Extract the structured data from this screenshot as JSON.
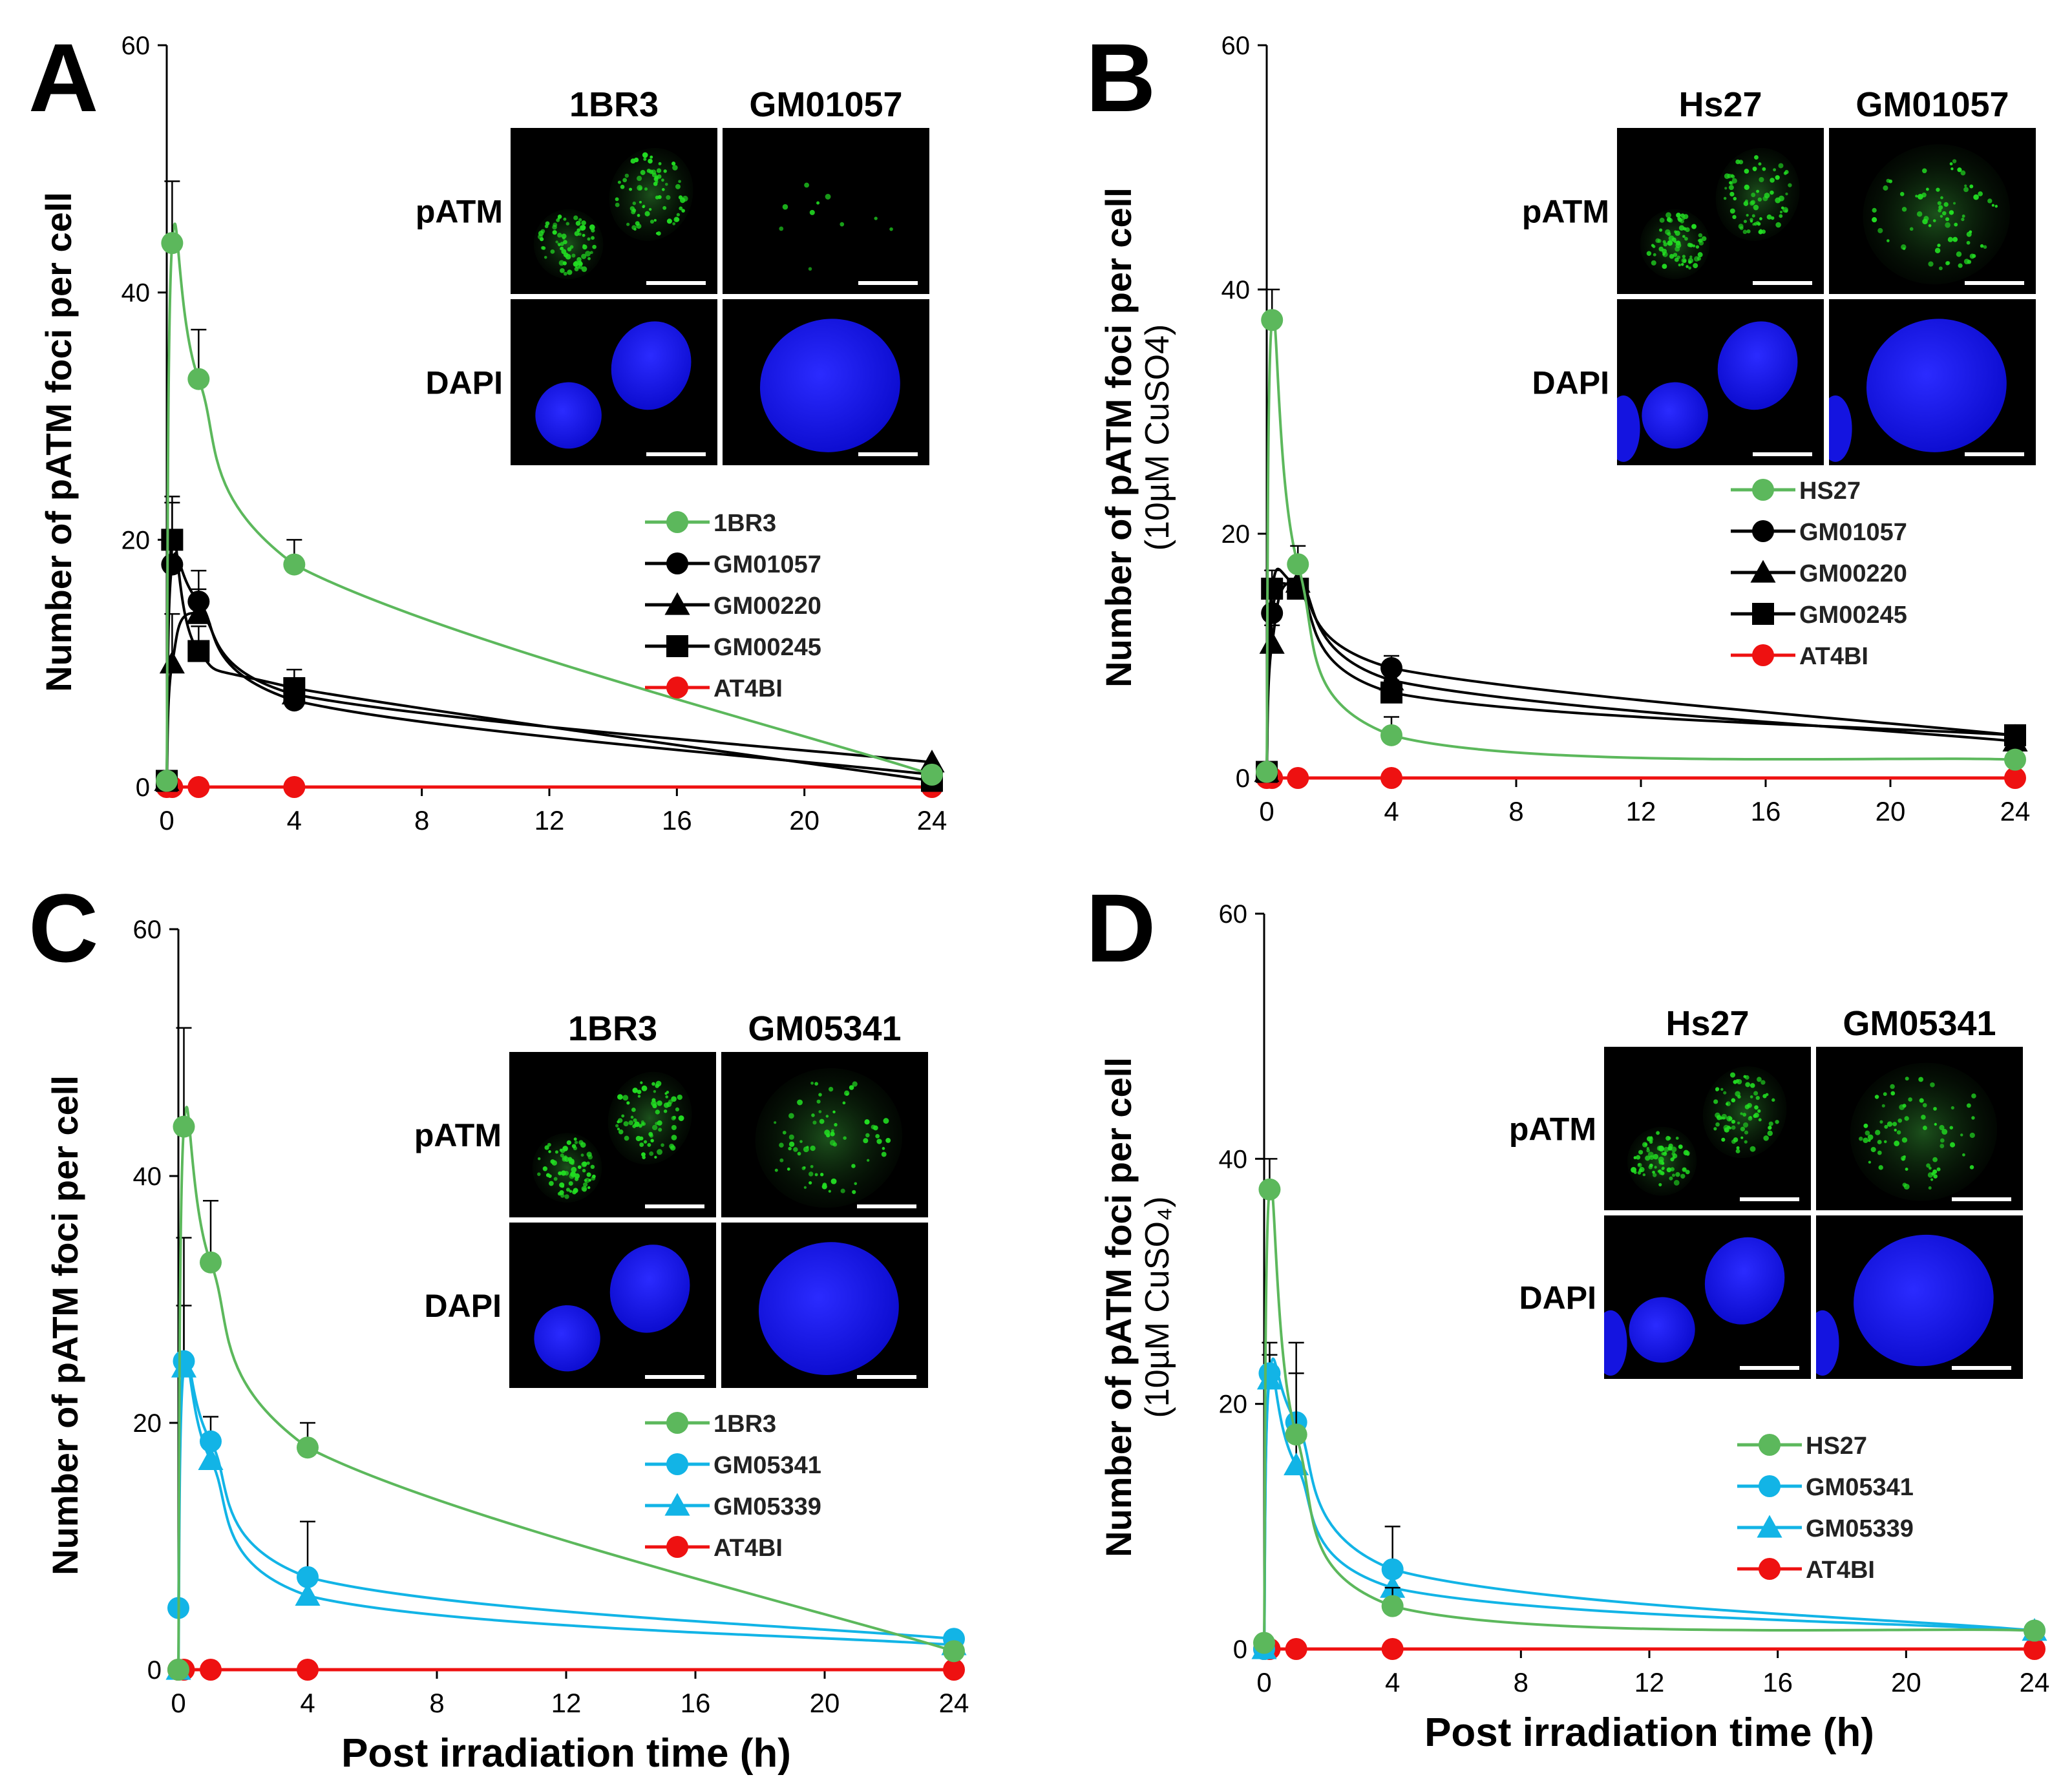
{
  "figure": {
    "xlabel": "Post irradiation time (h)",
    "colors": {
      "normal": "#5cb85c",
      "black": "#000000",
      "red": "#ee1111",
      "cyan": "#12b4e6",
      "nucleus": "#1a1aff",
      "foci": "#22dd22"
    }
  },
  "chart_data": [
    {
      "panel": "A",
      "type": "line",
      "ylabel": "Number of pATM foci per cell",
      "ylabel2": "",
      "x_ticks": [
        "0",
        "4",
        "8",
        "12",
        "16",
        "20",
        "24"
      ],
      "y_ticks": [
        "0",
        "20",
        "40",
        "60"
      ],
      "xlim": [
        0,
        24
      ],
      "ylim": [
        0,
        60
      ],
      "show_xlabel": false,
      "inset": {
        "columns": [
          "1BR3",
          "GM01057"
        ],
        "rows": [
          "pATM",
          "DAPI"
        ]
      },
      "series": [
        {
          "name": "1BR3",
          "color": "normal",
          "marker": "circle",
          "x": [
            0,
            0.17,
            1,
            4,
            24
          ],
          "y": [
            0.5,
            44,
            33,
            18,
            1
          ],
          "err": [
            0,
            5,
            4,
            2,
            0
          ]
        },
        {
          "name": "GM01057",
          "color": "black",
          "marker": "circle",
          "x": [
            0,
            0.17,
            1,
            4,
            24
          ],
          "y": [
            0.5,
            18,
            15,
            7,
            1
          ],
          "err": [
            0,
            5,
            2.5,
            1,
            0
          ]
        },
        {
          "name": "GM00220",
          "color": "black",
          "marker": "triangle",
          "x": [
            0,
            0.17,
            1,
            4,
            24
          ],
          "y": [
            0.5,
            10,
            14,
            7.5,
            2
          ],
          "err": [
            0,
            4,
            2,
            1,
            0
          ]
        },
        {
          "name": "GM00245",
          "color": "black",
          "marker": "square",
          "x": [
            0,
            0.17,
            1,
            4,
            24
          ],
          "y": [
            0.5,
            20,
            11,
            8,
            0.5
          ],
          "err": [
            0,
            3.5,
            2,
            1.5,
            0
          ]
        },
        {
          "name": "AT4BI",
          "color": "red",
          "marker": "circle",
          "x": [
            0,
            0.17,
            1,
            4,
            24
          ],
          "y": [
            0,
            0,
            0,
            0,
            0
          ],
          "err": [
            0,
            0,
            0,
            0,
            0
          ]
        }
      ]
    },
    {
      "panel": "B",
      "type": "line",
      "ylabel": "Number of pATM foci per cell",
      "ylabel2": "(10µM CuSO4)",
      "x_ticks": [
        "0",
        "4",
        "8",
        "12",
        "16",
        "20",
        "24"
      ],
      "y_ticks": [
        "0",
        "20",
        "40",
        "60"
      ],
      "xlim": [
        0,
        24
      ],
      "ylim": [
        0,
        60
      ],
      "show_xlabel": false,
      "inset": {
        "columns": [
          "Hs27",
          "GM01057"
        ],
        "rows": [
          "pATM",
          "DAPI"
        ]
      },
      "series": [
        {
          "name": "HS27",
          "color": "normal",
          "marker": "circle",
          "x": [
            0,
            0.17,
            1,
            4,
            24
          ],
          "y": [
            0.5,
            37.5,
            17.5,
            3.5,
            1.5
          ],
          "err": [
            0,
            2.5,
            1.5,
            1.5,
            0
          ]
        },
        {
          "name": "GM01057",
          "color": "black",
          "marker": "circle",
          "x": [
            0,
            0.17,
            1,
            4,
            24
          ],
          "y": [
            0.5,
            13.5,
            15.5,
            9,
            3.5
          ],
          "err": [
            0,
            2,
            1.5,
            1,
            0
          ]
        },
        {
          "name": "GM00220",
          "color": "black",
          "marker": "triangle",
          "x": [
            0,
            0.17,
            1,
            4,
            24
          ],
          "y": [
            0.5,
            11,
            16,
            8,
            3
          ],
          "err": [
            0,
            1.5,
            1.5,
            1,
            0
          ]
        },
        {
          "name": "GM00245",
          "color": "black",
          "marker": "square",
          "x": [
            0,
            0.17,
            1,
            4,
            24
          ],
          "y": [
            0.5,
            15.5,
            15.5,
            7,
            3.5
          ],
          "err": [
            0,
            1.5,
            1.5,
            1,
            0
          ]
        },
        {
          "name": "AT4BI",
          "color": "red",
          "marker": "circle",
          "x": [
            0,
            0.17,
            1,
            4,
            24
          ],
          "y": [
            0,
            0,
            0,
            0,
            0
          ],
          "err": [
            0,
            0,
            0,
            0,
            0
          ]
        }
      ]
    },
    {
      "panel": "C",
      "type": "line",
      "ylabel": "Number of pATM foci per cell",
      "ylabel2": "",
      "x_ticks": [
        "0",
        "4",
        "8",
        "12",
        "16",
        "20",
        "24"
      ],
      "y_ticks": [
        "0",
        "20",
        "40",
        "60"
      ],
      "xlim": [
        0,
        24
      ],
      "ylim": [
        0,
        60
      ],
      "show_xlabel": true,
      "inset": {
        "columns": [
          "1BR3",
          "GM05341"
        ],
        "rows": [
          "pATM",
          "DAPI"
        ]
      },
      "series": [
        {
          "name": "1BR3",
          "color": "normal",
          "marker": "circle",
          "x": [
            0,
            0.17,
            1,
            4,
            24
          ],
          "y": [
            0,
            44,
            33,
            18,
            1.5
          ],
          "err": [
            0,
            8,
            5,
            2,
            0
          ]
        },
        {
          "name": "GM05341",
          "color": "cyan",
          "marker": "circle",
          "x": [
            0,
            0.17,
            1,
            4,
            24
          ],
          "y": [
            5,
            25,
            18.5,
            7.5,
            2.5
          ],
          "err": [
            0,
            10,
            2,
            4.5,
            0
          ]
        },
        {
          "name": "GM05339",
          "color": "cyan",
          "marker": "triangle",
          "x": [
            0,
            0.17,
            1,
            4,
            24
          ],
          "y": [
            0,
            24.5,
            17,
            6,
            2
          ],
          "err": [
            0,
            5,
            1.5,
            1,
            0
          ]
        },
        {
          "name": "AT4BI",
          "color": "red",
          "marker": "circle",
          "x": [
            0,
            0.17,
            1,
            4,
            24
          ],
          "y": [
            0,
            0,
            0,
            0,
            0
          ],
          "err": [
            0,
            0,
            0,
            0,
            0
          ]
        }
      ]
    },
    {
      "panel": "D",
      "type": "line",
      "ylabel": "Number of pATM foci per cell",
      "ylabel2": "(10µM CuSO₄)",
      "x_ticks": [
        "0",
        "4",
        "8",
        "12",
        "16",
        "20",
        "24"
      ],
      "y_ticks": [
        "0",
        "20",
        "40",
        "60"
      ],
      "xlim": [
        0,
        24
      ],
      "ylim": [
        0,
        60
      ],
      "show_xlabel": true,
      "inset": {
        "columns": [
          "Hs27",
          "GM05341"
        ],
        "rows": [
          "pATM",
          "DAPI"
        ]
      },
      "series": [
        {
          "name": "HS27",
          "color": "normal",
          "marker": "circle",
          "x": [
            0,
            0.17,
            1,
            4,
            24
          ],
          "y": [
            0.5,
            37.5,
            17.5,
            3.5,
            1.5
          ],
          "err": [
            0,
            2.5,
            5,
            1.5,
            0
          ]
        },
        {
          "name": "GM05341",
          "color": "cyan",
          "marker": "circle",
          "x": [
            0,
            0.17,
            1,
            4,
            24
          ],
          "y": [
            0,
            22.5,
            18.5,
            6.5,
            1.5
          ],
          "err": [
            0,
            2.5,
            6.5,
            3.5,
            0
          ]
        },
        {
          "name": "GM05339",
          "color": "cyan",
          "marker": "triangle",
          "x": [
            0,
            0.17,
            1,
            4,
            24
          ],
          "y": [
            0,
            22,
            15,
            5,
            1.5
          ],
          "err": [
            0,
            2,
            2.5,
            1,
            0
          ]
        },
        {
          "name": "AT4BI",
          "color": "red",
          "marker": "circle",
          "x": [
            0,
            0.17,
            1,
            4,
            24
          ],
          "y": [
            0,
            0,
            0,
            0,
            0
          ],
          "err": [
            0,
            0,
            0,
            0,
            0
          ]
        }
      ]
    }
  ]
}
